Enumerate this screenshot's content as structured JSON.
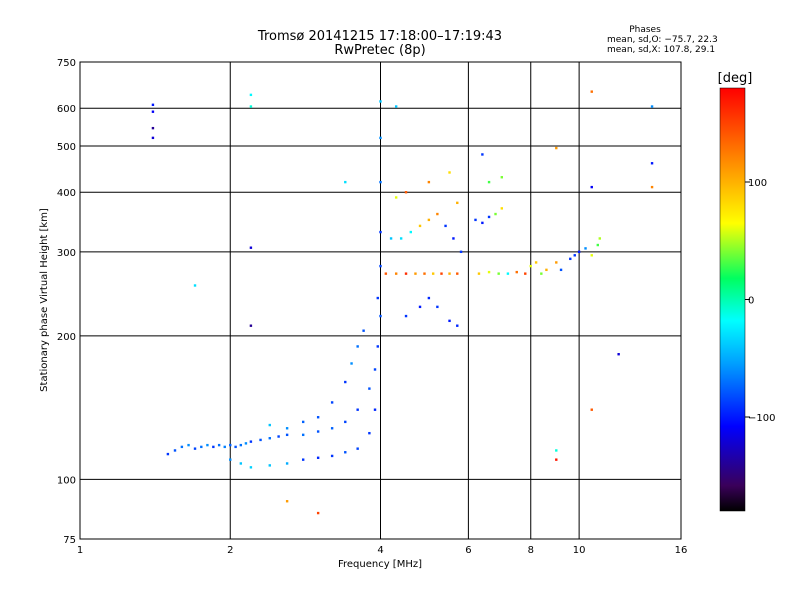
{
  "chart_data": {
    "type": "scatter",
    "title": "Tromsø 20141215 17:18:00–17:19:43",
    "subtitle": "RwPretec (8p)",
    "xlabel": "Frequency [MHz]",
    "ylabel": "Stationary phase Virtual Height [km]",
    "x_scale": "log",
    "y_scale": "log",
    "xlim": [
      1,
      16
    ],
    "ylim": [
      75,
      750
    ],
    "x_ticks": [
      1,
      2,
      4,
      6,
      8,
      10,
      16
    ],
    "x_tick_labels": [
      "1",
      "2",
      "4",
      "6",
      "8",
      "10",
      "16"
    ],
    "y_ticks": [
      75,
      100,
      200,
      300,
      400,
      500,
      600,
      750
    ],
    "y_tick_labels": [
      "75",
      "100",
      "200",
      "300",
      "400",
      "500",
      "600",
      "750"
    ],
    "grid": true,
    "stats_header": "Phases",
    "stats_line_o": "mean, sd,O: −75.7, 22.3",
    "stats_line_x": "mean, sd,X: 107.8, 29.1",
    "colorbar": {
      "label": "[deg]",
      "range": [
        -180,
        180
      ],
      "ticks": [
        100,
        0,
        -100
      ],
      "tick_labels": [
        "100",
        "0",
        "−100"
      ]
    },
    "series": [
      {
        "type": "scatter",
        "points": [
          [
            1.5,
            113,
            -90
          ],
          [
            1.55,
            115,
            -80
          ],
          [
            1.6,
            117,
            -70
          ],
          [
            1.65,
            118,
            -60
          ],
          [
            1.7,
            116,
            -85
          ],
          [
            1.75,
            117,
            -70
          ],
          [
            1.8,
            118,
            -60
          ],
          [
            1.85,
            117,
            -90
          ],
          [
            1.9,
            118,
            -70
          ],
          [
            1.95,
            117,
            -65
          ],
          [
            2.0,
            118,
            -75
          ],
          [
            2.05,
            117,
            -80
          ],
          [
            2.1,
            118,
            -70
          ],
          [
            2.15,
            119,
            -60
          ],
          [
            2.2,
            120,
            -90
          ],
          [
            2.3,
            121,
            -80
          ],
          [
            2.4,
            122,
            -70
          ],
          [
            2.5,
            123,
            -85
          ],
          [
            2.6,
            124,
            -80
          ],
          [
            2.8,
            124,
            -70
          ],
          [
            3.0,
            126,
            -80
          ],
          [
            3.2,
            128,
            -75
          ],
          [
            3.4,
            132,
            -85
          ],
          [
            3.6,
            140,
            -90
          ],
          [
            3.8,
            155,
            -80
          ],
          [
            3.9,
            170,
            -85
          ],
          [
            3.95,
            190,
            -90
          ],
          [
            4.0,
            220,
            -80
          ],
          [
            2.0,
            110,
            -60
          ],
          [
            2.1,
            108,
            -40
          ],
          [
            2.2,
            106,
            -35
          ],
          [
            2.4,
            107,
            -40
          ],
          [
            2.6,
            108,
            -50
          ],
          [
            2.8,
            110,
            -90
          ],
          [
            3.0,
            111,
            -95
          ],
          [
            3.2,
            112,
            -90
          ],
          [
            3.4,
            114,
            -80
          ],
          [
            3.6,
            116,
            -85
          ],
          [
            3.8,
            125,
            -90
          ],
          [
            3.9,
            140,
            -95
          ],
          [
            2.4,
            130,
            -40
          ],
          [
            2.6,
            128,
            -60
          ],
          [
            2.8,
            132,
            -75
          ],
          [
            3.0,
            135,
            -80
          ],
          [
            3.2,
            145,
            -85
          ],
          [
            3.4,
            160,
            -90
          ],
          [
            3.5,
            175,
            -60
          ],
          [
            3.6,
            190,
            -70
          ],
          [
            3.7,
            205,
            -80
          ],
          [
            3.95,
            240,
            -90
          ],
          [
            4.0,
            280,
            -85
          ],
          [
            4.0,
            330,
            -90
          ],
          [
            4.0,
            420,
            -70
          ],
          [
            4.0,
            520,
            -60
          ],
          [
            4.0,
            620,
            -40
          ],
          [
            4.1,
            270,
            140
          ],
          [
            4.3,
            270,
            120
          ],
          [
            4.5,
            270,
            160
          ],
          [
            4.7,
            270,
            110
          ],
          [
            4.9,
            270,
            130
          ],
          [
            5.1,
            270,
            90
          ],
          [
            5.3,
            270,
            150
          ],
          [
            5.5,
            270,
            100
          ],
          [
            5.7,
            270,
            140
          ],
          [
            4.2,
            320,
            -40
          ],
          [
            4.4,
            320,
            -30
          ],
          [
            4.6,
            330,
            -20
          ],
          [
            4.8,
            340,
            90
          ],
          [
            5.0,
            350,
            100
          ],
          [
            5.2,
            360,
            120
          ],
          [
            5.4,
            340,
            -90
          ],
          [
            5.6,
            320,
            -100
          ],
          [
            5.8,
            300,
            -90
          ],
          [
            4.5,
            220,
            -90
          ],
          [
            4.8,
            230,
            -100
          ],
          [
            5.0,
            240,
            -95
          ],
          [
            5.2,
            230,
            -90
          ],
          [
            5.5,
            215,
            -100
          ],
          [
            5.7,
            210,
            -95
          ],
          [
            4.3,
            390,
            60
          ],
          [
            4.5,
            400,
            140
          ],
          [
            5.0,
            420,
            120
          ],
          [
            5.5,
            440,
            80
          ],
          [
            5.7,
            380,
            100
          ],
          [
            6.3,
            270,
            90
          ],
          [
            6.6,
            272,
            60
          ],
          [
            6.9,
            270,
            40
          ],
          [
            7.2,
            270,
            -20
          ],
          [
            7.5,
            272,
            130
          ],
          [
            7.8,
            270,
            150
          ],
          [
            6.2,
            350,
            -90
          ],
          [
            6.4,
            345,
            -100
          ],
          [
            6.6,
            355,
            -90
          ],
          [
            6.8,
            360,
            40
          ],
          [
            7.0,
            370,
            80
          ],
          [
            6.4,
            480,
            -90
          ],
          [
            6.6,
            420,
            30
          ],
          [
            7.0,
            430,
            40
          ],
          [
            8.0,
            280,
            60
          ],
          [
            8.2,
            285,
            90
          ],
          [
            8.4,
            270,
            40
          ],
          [
            8.6,
            275,
            100
          ],
          [
            9.0,
            285,
            110
          ],
          [
            9.2,
            275,
            -80
          ],
          [
            9.6,
            290,
            -90
          ],
          [
            9.8,
            295,
            -90
          ],
          [
            10.0,
            300,
            -100
          ],
          [
            10.3,
            305,
            -60
          ],
          [
            10.6,
            295,
            60
          ],
          [
            10.9,
            310,
            30
          ],
          [
            11.0,
            320,
            50
          ],
          [
            1.4,
            520,
            -120
          ],
          [
            1.4,
            545,
            -140
          ],
          [
            1.4,
            590,
            -110
          ],
          [
            1.4,
            610,
            -100
          ],
          [
            1.7,
            255,
            -30
          ],
          [
            2.2,
            640,
            -20
          ],
          [
            2.2,
            605,
            -10
          ],
          [
            2.2,
            306,
            -120
          ],
          [
            2.2,
            210,
            -140
          ],
          [
            3.4,
            420,
            -30
          ],
          [
            4.3,
            605,
            -40
          ],
          [
            3.0,
            85,
            150
          ],
          [
            2.6,
            90,
            110
          ],
          [
            9.0,
            495,
            110
          ],
          [
            9.0,
            115,
            -10
          ],
          [
            9.0,
            110,
            170
          ],
          [
            10.6,
            650,
            130
          ],
          [
            10.6,
            410,
            -110
          ],
          [
            10.6,
            140,
            140
          ],
          [
            12.0,
            183,
            -120
          ],
          [
            14.0,
            605,
            -60
          ],
          [
            14.0,
            460,
            -100
          ],
          [
            14.0,
            410,
            120
          ]
        ]
      }
    ]
  }
}
